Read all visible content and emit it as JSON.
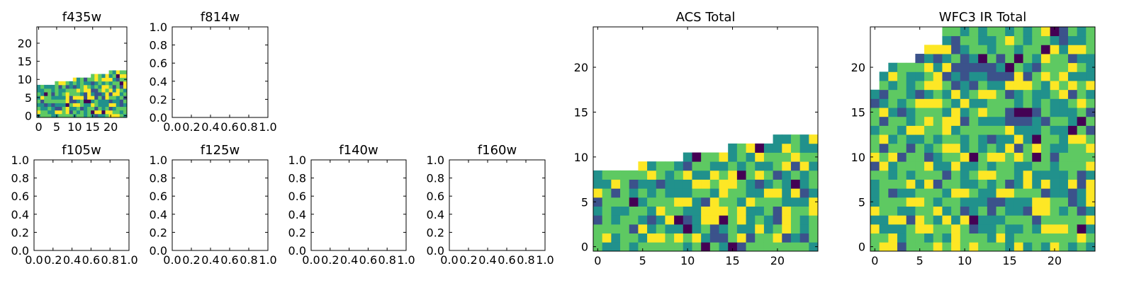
{
  "palette": [
    "#440154",
    "#3b528b",
    "#21918c",
    "#5ec962",
    "#fde725"
  ],
  "chart_data": [
    {
      "type": "heatmap",
      "title": "f435w",
      "xticks": [
        "0",
        "5",
        "10",
        "15",
        "20"
      ],
      "yticks": [
        "0",
        "5",
        "10",
        "15",
        "20"
      ],
      "xlim": [
        -0.5,
        24.5
      ],
      "ylim": [
        -0.5,
        24.5
      ],
      "colormap": "viridis",
      "filled_rows": [
        9,
        9,
        9,
        9,
        9,
        10,
        10,
        10,
        10,
        10,
        11,
        11,
        11,
        11,
        11,
        12,
        12,
        12,
        12,
        12,
        13,
        13,
        13,
        13,
        13
      ]
    },
    {
      "type": "heatmap",
      "title": "f814w",
      "xticks": [
        "0.0",
        "0.2",
        "0.4",
        "0.6",
        "0.8",
        "1.0"
      ],
      "yticks": [
        "0.0",
        "0.2",
        "0.4",
        "0.6",
        "0.8",
        "1.0"
      ],
      "empty": true
    },
    {
      "type": "heatmap",
      "title": "f105w",
      "xticks": [
        "0.0",
        "0.2",
        "0.4",
        "0.6",
        "0.8",
        "1.0"
      ],
      "yticks": [
        "0.0",
        "0.2",
        "0.4",
        "0.6",
        "0.8",
        "1.0"
      ],
      "empty": true
    },
    {
      "type": "heatmap",
      "title": "f125w",
      "xticks": [
        "0.0",
        "0.2",
        "0.4",
        "0.6",
        "0.8",
        "1.0"
      ],
      "yticks": [
        "0.0",
        "0.2",
        "0.4",
        "0.6",
        "0.8",
        "1.0"
      ],
      "empty": true
    },
    {
      "type": "heatmap",
      "title": "f140w",
      "xticks": [
        "0.0",
        "0.2",
        "0.4",
        "0.6",
        "0.8",
        "1.0"
      ],
      "yticks": [
        "0.0",
        "0.2",
        "0.4",
        "0.6",
        "0.8",
        "1.0"
      ],
      "empty": true
    },
    {
      "type": "heatmap",
      "title": "f160w",
      "xticks": [
        "0.0",
        "0.2",
        "0.4",
        "0.6",
        "0.8",
        "1.0"
      ],
      "yticks": [
        "0.0",
        "0.2",
        "0.4",
        "0.6",
        "0.8",
        "1.0"
      ],
      "empty": true
    },
    {
      "type": "heatmap",
      "title": "ACS Total",
      "xticks": [
        "0",
        "5",
        "10",
        "15",
        "20"
      ],
      "yticks": [
        "0",
        "5",
        "10",
        "15",
        "20"
      ],
      "xlim": [
        -0.5,
        24.5
      ],
      "ylim": [
        -0.5,
        24.5
      ],
      "colormap": "viridis",
      "filled_rows": [
        9,
        9,
        9,
        9,
        9,
        10,
        10,
        10,
        10,
        10,
        11,
        11,
        11,
        11,
        11,
        12,
        12,
        12,
        12,
        12,
        13,
        13,
        13,
        13,
        13
      ]
    },
    {
      "type": "heatmap",
      "title": "WFC3 IR Total",
      "xticks": [
        "0",
        "5",
        "10",
        "15",
        "20"
      ],
      "yticks": [
        "0",
        "5",
        "10",
        "15",
        "20"
      ],
      "xlim": [
        -0.5,
        24.5
      ],
      "ylim": [
        -0.5,
        24.5
      ],
      "colormap": "viridis",
      "filled_rows": [
        18,
        20,
        21,
        21,
        21,
        22,
        23,
        23,
        25,
        25,
        25,
        25,
        25,
        25,
        25,
        25,
        25,
        25,
        25,
        25,
        25,
        25,
        25,
        25,
        25
      ]
    }
  ]
}
